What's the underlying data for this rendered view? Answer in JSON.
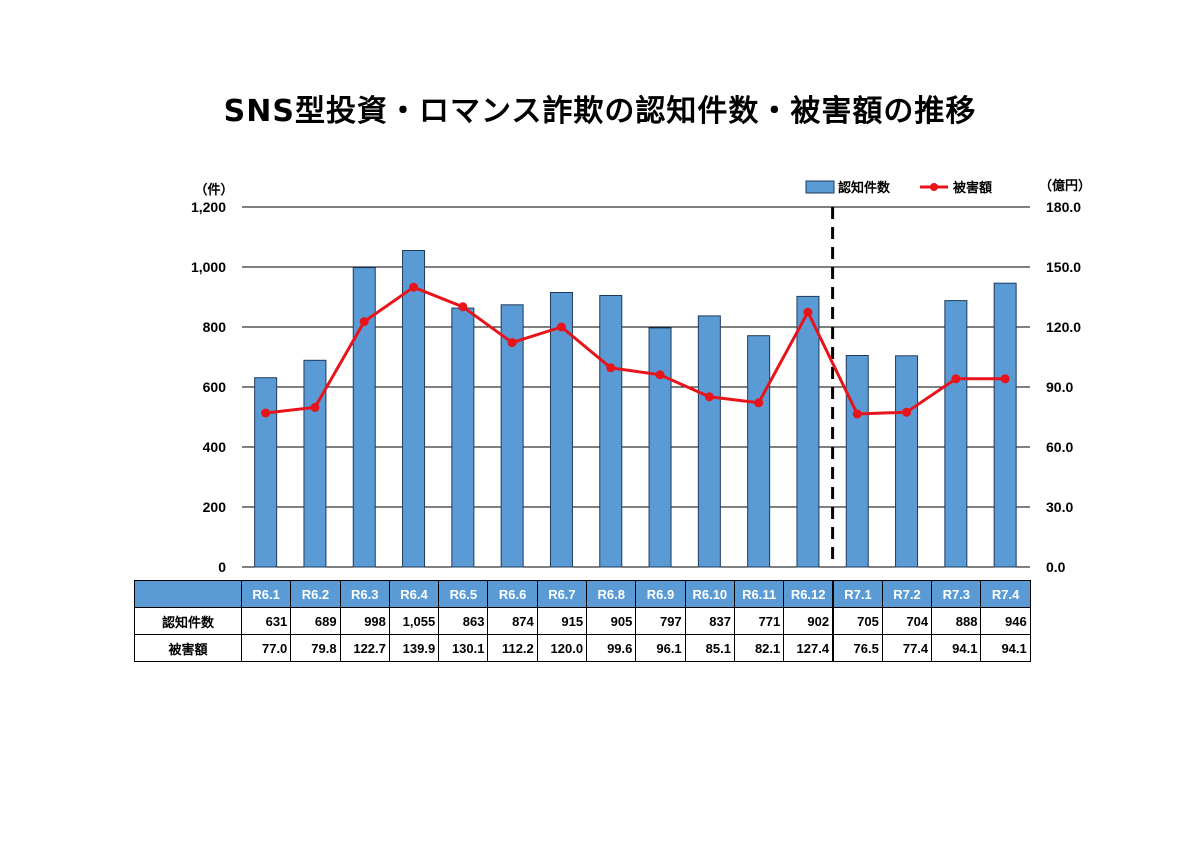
{
  "chart_data": {
    "type": "bar",
    "title": "SNS型投資・ロマンス詐欺の認知件数・被害額の推移",
    "categories": [
      "R6.1",
      "R6.2",
      "R6.3",
      "R6.4",
      "R6.5",
      "R6.6",
      "R6.7",
      "R6.8",
      "R6.9",
      "R6.10",
      "R6.11",
      "R6.12",
      "R7.1",
      "R7.2",
      "R7.3",
      "R7.4"
    ],
    "y_left": {
      "unit": "（件）",
      "ylim": [
        0,
        1200
      ],
      "ticks": [
        "0",
        "200",
        "400",
        "600",
        "800",
        "1,000",
        "1,200"
      ]
    },
    "y_right": {
      "unit": "（億円）",
      "ylim": [
        0,
        180
      ],
      "ticks": [
        "0.0",
        "30.0",
        "60.0",
        "90.0",
        "120.0",
        "150.0",
        "180.0"
      ]
    },
    "series": [
      {
        "name": "認知件数",
        "type": "bar",
        "axis": "left",
        "color": "#5b9bd5",
        "values": [
          631,
          689,
          998,
          1055,
          863,
          874,
          915,
          905,
          797,
          837,
          771,
          902,
          705,
          704,
          888,
          946
        ],
        "labels": [
          "631",
          "689",
          "998",
          "1,055",
          "863",
          "874",
          "915",
          "905",
          "797",
          "837",
          "771",
          "902",
          "705",
          "704",
          "888",
          "946"
        ]
      },
      {
        "name": "被害額",
        "type": "line",
        "axis": "right",
        "color": "#e8141b",
        "values": [
          77.0,
          79.8,
          122.7,
          139.9,
          130.1,
          112.2,
          120.0,
          99.6,
          96.1,
          85.1,
          82.1,
          127.4,
          76.5,
          77.4,
          94.1,
          94.1
        ],
        "labels": [
          "77.0",
          "79.8",
          "122.7",
          "139.9",
          "130.1",
          "112.2",
          "120.0",
          "99.6",
          "96.1",
          "85.1",
          "82.1",
          "127.4",
          "76.5",
          "77.4",
          "94.1",
          "94.1"
        ]
      }
    ],
    "divider_after": "R6.12",
    "grid": true,
    "legend_position": "top-right"
  }
}
